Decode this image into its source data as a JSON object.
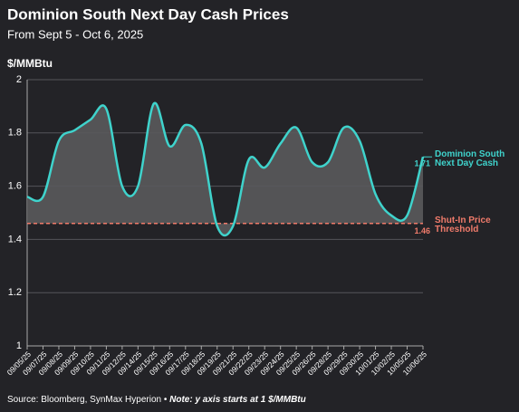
{
  "chart_data": {
    "type": "area",
    "title": "Dominion South Next Day Cash Prices",
    "subtitle": "From Sept 5 - Oct 6, 2025",
    "y_label": "$/MMBtu",
    "categories": [
      "09/05/25",
      "09/07/25",
      "09/08/25",
      "09/09/25",
      "09/10/25",
      "09/11/25",
      "09/12/25",
      "09/14/25",
      "09/15/25",
      "09/16/25",
      "09/17/25",
      "09/18/25",
      "09/19/25",
      "09/21/25",
      "09/22/25",
      "09/23/25",
      "09/24/25",
      "09/25/25",
      "09/26/25",
      "09/28/25",
      "09/29/25",
      "09/30/25",
      "10/01/25",
      "10/02/25",
      "10/05/25",
      "10/06/25"
    ],
    "series": [
      {
        "name": "Dominion South Next Day Cash",
        "color": "#3fd3cc",
        "values": [
          1.56,
          1.56,
          1.77,
          1.81,
          1.85,
          1.89,
          1.6,
          1.6,
          1.91,
          1.75,
          1.83,
          1.76,
          1.45,
          1.45,
          1.7,
          1.67,
          1.76,
          1.82,
          1.69,
          1.69,
          1.82,
          1.77,
          1.57,
          1.49,
          1.49,
          1.71
        ]
      }
    ],
    "threshold": {
      "name": "Shut-In Price Threshold",
      "value": 1.46,
      "color": "#f07b6b"
    },
    "ylim": [
      1,
      2
    ],
    "yticks": [
      1,
      1.2,
      1.4,
      1.6,
      1.8,
      2
    ],
    "grid": true,
    "source": "Source: Bloomberg, SynMax Hyperion •",
    "note": "Note: y axis starts at 1 $/MMBtu"
  }
}
